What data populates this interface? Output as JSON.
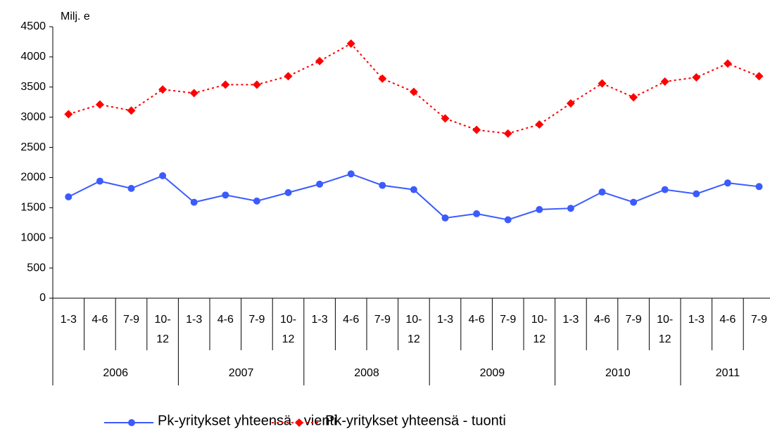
{
  "chart_data": {
    "type": "line",
    "y_axis_label": "Milj. e",
    "categories": [
      "1-3",
      "4-6",
      "7-9",
      "10-12",
      "1-3",
      "4-6",
      "7-9",
      "10-12",
      "1-3",
      "4-6",
      "7-9",
      "10-12",
      "1-3",
      "4-6",
      "7-9",
      "10-12",
      "1-3",
      "4-6",
      "7-9",
      "10-12",
      "1-3",
      "4-6",
      "7-9"
    ],
    "years": [
      "2006",
      "2006",
      "2006",
      "2006",
      "2007",
      "2007",
      "2007",
      "2007",
      "2008",
      "2008",
      "2008",
      "2008",
      "2009",
      "2009",
      "2009",
      "2009",
      "2010",
      "2010",
      "2010",
      "2010",
      "2011",
      "2011",
      "2011"
    ],
    "series": [
      {
        "name": "Pk-yritykset yhteensä - vienti",
        "color": "#3b5bff",
        "style": "solid",
        "marker": "circle",
        "values": [
          1680,
          1940,
          1820,
          2030,
          1590,
          1710,
          1610,
          1750,
          1890,
          2060,
          1870,
          1800,
          1330,
          1400,
          1300,
          1470,
          1490,
          1760,
          1590,
          1800,
          1730,
          1910,
          1850
        ]
      },
      {
        "name": "Pk-yritykset yhteensä - tuonti",
        "color": "#ff0000",
        "style": "dotted",
        "marker": "diamond",
        "values": [
          3050,
          3210,
          3110,
          3460,
          3400,
          3540,
          3540,
          3680,
          3930,
          4220,
          3640,
          3420,
          2980,
          2790,
          2730,
          2880,
          3230,
          3560,
          3330,
          3590,
          3660,
          3890,
          3680
        ]
      }
    ],
    "ylim": [
      0,
      4500
    ],
    "yticks": [
      0,
      500,
      1000,
      1500,
      2000,
      2500,
      3000,
      3500,
      4000,
      4500
    ],
    "grid": false,
    "legend": "bottom"
  }
}
